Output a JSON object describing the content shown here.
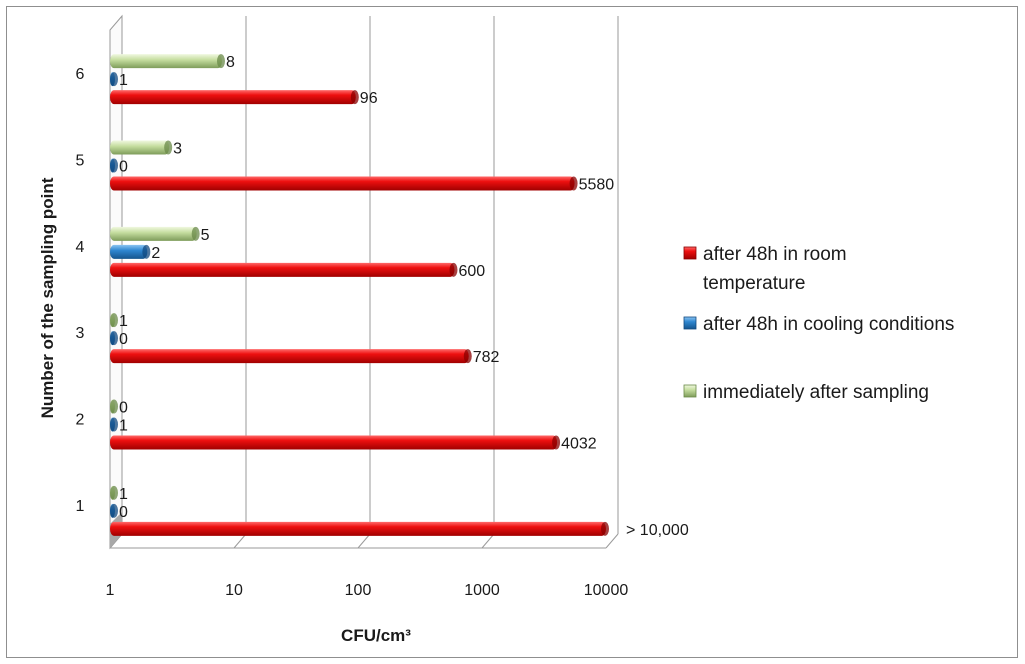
{
  "chart_data": {
    "type": "bar",
    "orientation": "horizontal",
    "x_scale": "log",
    "xlim": [
      1,
      10000
    ],
    "xticks": [
      "1",
      "10",
      "100",
      "1000",
      "10000"
    ],
    "xlabel": "CFU/cm³",
    "ylabel": "Number of the sampling point",
    "categories": [
      "1",
      "2",
      "3",
      "4",
      "5",
      "6"
    ],
    "legend_position": "right",
    "grid": true,
    "series": [
      {
        "name": "immediately after sampling",
        "color": "#c6dea0",
        "values": [
          1,
          0,
          1,
          5,
          3,
          8
        ],
        "labels": [
          "1",
          "0",
          "1",
          "5",
          "3",
          "8"
        ]
      },
      {
        "name": "after 48h in cooling conditions",
        "color": "#2e86d0",
        "values": [
          0,
          1,
          0,
          2,
          0,
          1
        ],
        "labels": [
          "0",
          "1",
          "0",
          "2",
          "0",
          "1"
        ]
      },
      {
        "name": "after 48h in room temperature",
        "color": "#e00000",
        "values": [
          10000,
          4032,
          782,
          600,
          5580,
          96
        ],
        "labels": [
          "> 10,000",
          "4032",
          "782",
          "600",
          "5580",
          "96"
        ]
      }
    ],
    "legend_order": [
      2,
      1,
      0
    ],
    "legend_lines": [
      [
        "after 48h in room",
        "temperature"
      ],
      [
        "after 48h in cooling conditions"
      ],
      [
        "immediately after sampling"
      ]
    ]
  }
}
